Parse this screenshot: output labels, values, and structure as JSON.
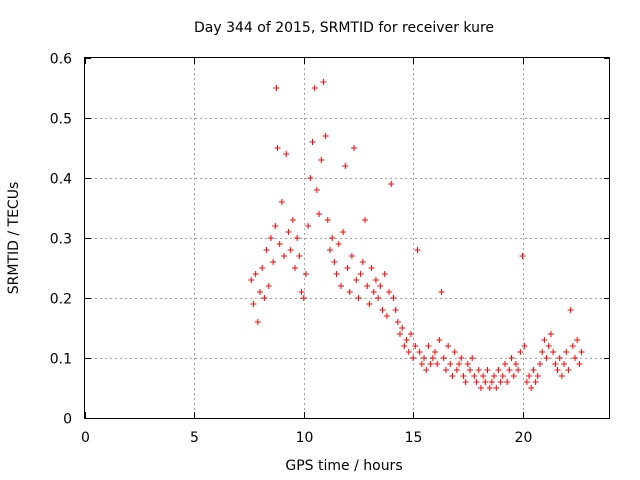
{
  "chart_data": {
    "type": "scatter",
    "title": "Day 344 of 2015, SRMTID for receiver kure",
    "xlabel": "GPS time / hours",
    "ylabel": "SRMTID / TECUs",
    "xlim": [
      0,
      24
    ],
    "ylim": [
      0,
      0.6
    ],
    "xticks": [
      0,
      5,
      10,
      15,
      20
    ],
    "yticks": [
      0,
      0.1,
      0.2,
      0.3,
      0.4,
      0.5,
      0.6
    ],
    "xtick_labels": [
      "0",
      "5",
      "10",
      "15",
      "20"
    ],
    "ytick_labels": [
      "0",
      "0.1",
      "0.2",
      "0.3",
      "0.4",
      "0.5",
      "0.6"
    ],
    "grid": true,
    "marker": "+",
    "color": "#ff0000",
    "x": [
      7.6,
      7.7,
      7.8,
      7.9,
      8.0,
      8.1,
      8.2,
      8.3,
      8.4,
      8.5,
      8.6,
      8.7,
      8.75,
      8.8,
      8.9,
      9.0,
      9.1,
      9.2,
      9.3,
      9.4,
      9.5,
      9.6,
      9.7,
      9.8,
      9.9,
      10.0,
      10.1,
      10.2,
      10.3,
      10.4,
      10.5,
      10.6,
      10.7,
      10.8,
      10.9,
      11.0,
      11.1,
      11.2,
      11.3,
      11.4,
      11.5,
      11.6,
      11.7,
      11.8,
      11.9,
      12.0,
      12.1,
      12.2,
      12.3,
      12.4,
      12.5,
      12.6,
      12.7,
      12.8,
      12.9,
      13.0,
      13.1,
      13.2,
      13.3,
      13.4,
      13.5,
      13.6,
      13.7,
      13.8,
      13.9,
      14.0,
      14.1,
      14.2,
      14.3,
      14.4,
      14.5,
      14.6,
      14.7,
      14.8,
      14.9,
      15.0,
      15.1,
      15.2,
      15.3,
      15.4,
      15.5,
      15.6,
      15.7,
      15.8,
      15.9,
      16.0,
      16.1,
      16.2,
      16.3,
      16.4,
      16.5,
      16.6,
      16.7,
      16.8,
      16.9,
      17.0,
      17.1,
      17.2,
      17.3,
      17.4,
      17.5,
      17.6,
      17.7,
      17.8,
      17.9,
      18.0,
      18.1,
      18.2,
      18.3,
      18.4,
      18.5,
      18.6,
      18.7,
      18.8,
      18.9,
      19.0,
      19.1,
      19.2,
      19.3,
      19.4,
      19.5,
      19.6,
      19.7,
      19.8,
      19.9,
      20.0,
      20.1,
      20.2,
      20.3,
      20.4,
      20.5,
      20.6,
      20.7,
      20.8,
      20.9,
      21.0,
      21.1,
      21.2,
      21.3,
      21.4,
      21.5,
      21.6,
      21.7,
      21.8,
      21.9,
      22.0,
      22.1,
      22.2,
      22.3,
      22.4,
      22.5,
      22.6,
      22.7
    ],
    "y": [
      0.23,
      0.19,
      0.24,
      0.16,
      0.21,
      0.25,
      0.2,
      0.28,
      0.22,
      0.3,
      0.26,
      0.32,
      0.55,
      0.45,
      0.29,
      0.36,
      0.27,
      0.44,
      0.31,
      0.28,
      0.33,
      0.25,
      0.3,
      0.27,
      0.21,
      0.2,
      0.24,
      0.32,
      0.4,
      0.46,
      0.55,
      0.38,
      0.34,
      0.43,
      0.56,
      0.47,
      0.33,
      0.28,
      0.3,
      0.26,
      0.24,
      0.29,
      0.22,
      0.31,
      0.42,
      0.25,
      0.21,
      0.27,
      0.45,
      0.23,
      0.2,
      0.24,
      0.26,
      0.33,
      0.22,
      0.19,
      0.25,
      0.21,
      0.23,
      0.2,
      0.22,
      0.18,
      0.24,
      0.17,
      0.21,
      0.39,
      0.2,
      0.18,
      0.16,
      0.14,
      0.15,
      0.12,
      0.13,
      0.11,
      0.14,
      0.1,
      0.12,
      0.28,
      0.11,
      0.09,
      0.1,
      0.08,
      0.12,
      0.09,
      0.1,
      0.11,
      0.09,
      0.13,
      0.21,
      0.1,
      0.08,
      0.12,
      0.09,
      0.07,
      0.11,
      0.08,
      0.09,
      0.1,
      0.07,
      0.06,
      0.09,
      0.08,
      0.1,
      0.07,
      0.06,
      0.08,
      0.05,
      0.07,
      0.06,
      0.08,
      0.05,
      0.06,
      0.07,
      0.05,
      0.08,
      0.06,
      0.07,
      0.09,
      0.06,
      0.08,
      0.1,
      0.07,
      0.09,
      0.08,
      0.11,
      0.27,
      0.12,
      0.06,
      0.07,
      0.05,
      0.08,
      0.06,
      0.07,
      0.09,
      0.11,
      0.13,
      0.1,
      0.12,
      0.14,
      0.11,
      0.09,
      0.08,
      0.1,
      0.07,
      0.09,
      0.11,
      0.08,
      0.18,
      0.12,
      0.1,
      0.13,
      0.09,
      0.11
    ]
  }
}
